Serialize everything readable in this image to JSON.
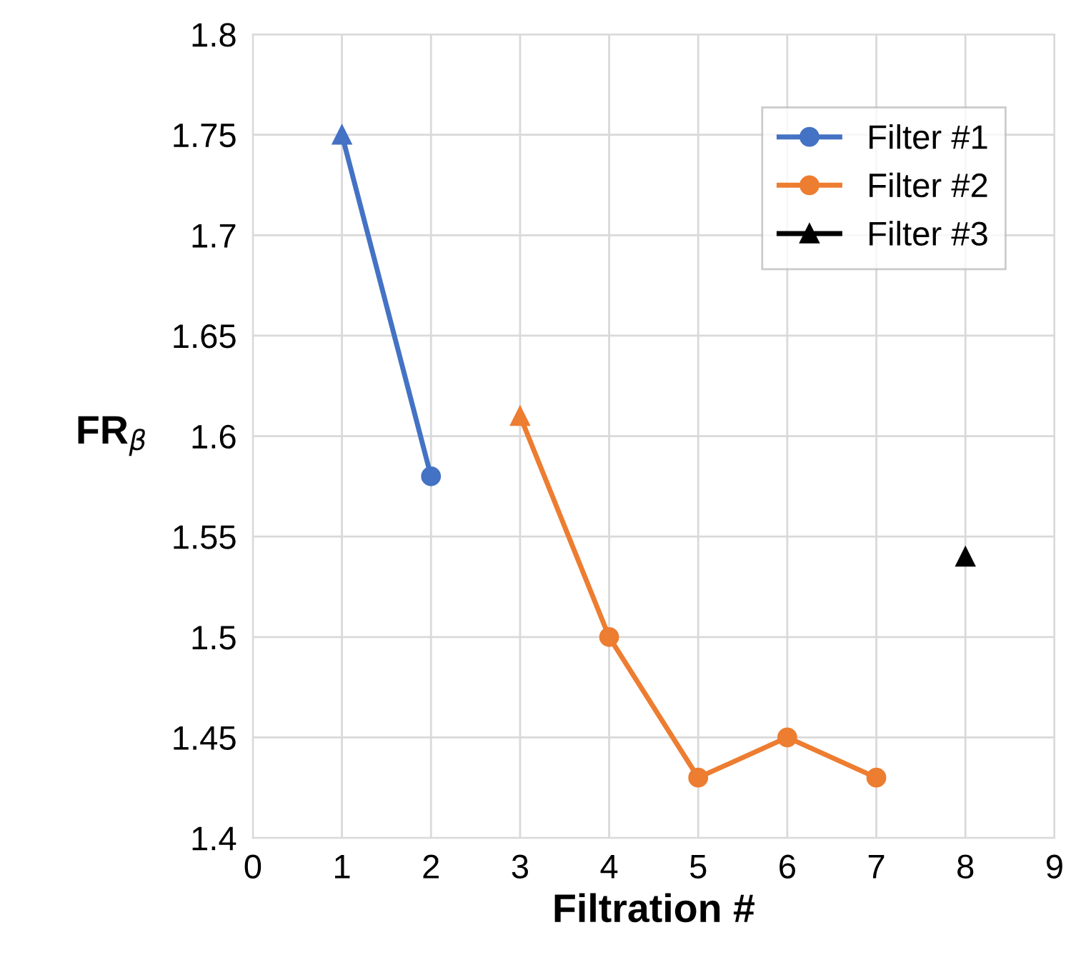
{
  "chart_data": {
    "type": "line",
    "xlabel": "Filtration #",
    "ylabel": "FR$_{β}$",
    "xlim": [
      0,
      9
    ],
    "xticks": [
      0,
      1,
      2,
      3,
      4,
      5,
      6,
      7,
      8,
      9
    ],
    "ylim": [
      1.4,
      1.8
    ],
    "yticks": [
      1.4,
      1.45,
      1.5,
      1.55,
      1.6,
      1.65,
      1.7,
      1.75,
      1.8
    ],
    "grid": true,
    "legend": "top right",
    "series": [
      {
        "name": "Filter #1",
        "color": "#4472c4",
        "x": [
          1,
          2
        ],
        "values": [
          1.75,
          1.58
        ],
        "marker": [
          "triangle",
          "circle"
        ],
        "line_style": "solid"
      },
      {
        "name": "Filter #2",
        "color": "#ed7d31",
        "x": [
          3,
          4,
          5,
          6,
          7
        ],
        "values": [
          1.61,
          1.5,
          1.43,
          1.45,
          1.43
        ],
        "marker": [
          "triangle",
          "circle",
          "circle",
          "circle",
          "circle"
        ],
        "line_style": "solid"
      },
      {
        "name": "Filter #3",
        "color": "#000000",
        "x": [
          8
        ],
        "values": [
          1.54
        ],
        "marker": [
          "triangle"
        ],
        "line_style": "solid"
      }
    ]
  }
}
